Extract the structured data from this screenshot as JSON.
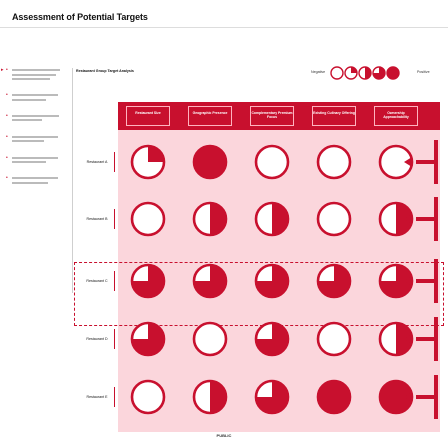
{
  "page_title": "Assessment of Potential Targets",
  "analysis_title": "Restaurant Group Target Analysis",
  "legend": {
    "negative": "Negative",
    "positive": "Positive"
  },
  "columns": [
    "Restaurant Size",
    "Geographic Presence",
    "Complementary Premium Focus",
    "Existing Culinary Offering",
    "Ownership Approachability"
  ],
  "rows": [
    {
      "name": "Restaurant A",
      "ratings": [
        0.25,
        1.0,
        0.0,
        0.0,
        0.0
      ]
    },
    {
      "name": "Restaurant B",
      "ratings": [
        0.0,
        0.5,
        0.5,
        0.0,
        0.5
      ]
    },
    {
      "name": "Restaurant C",
      "ratings": [
        0.75,
        0.75,
        0.75,
        0.75,
        0.75
      ],
      "highlighted": true
    },
    {
      "name": "Restaurant D",
      "ratings": [
        0.75,
        0.0,
        0.75,
        0.0,
        0.5
      ]
    },
    {
      "name": "Restaurant E",
      "ratings": [
        0.0,
        0.5,
        0.75,
        1.0,
        1.0
      ]
    }
  ],
  "footer": "PUBLIC",
  "colors": {
    "accent": "#c8102e",
    "table_bg": "#fbd6dc",
    "header_text": "#ffffff"
  }
}
